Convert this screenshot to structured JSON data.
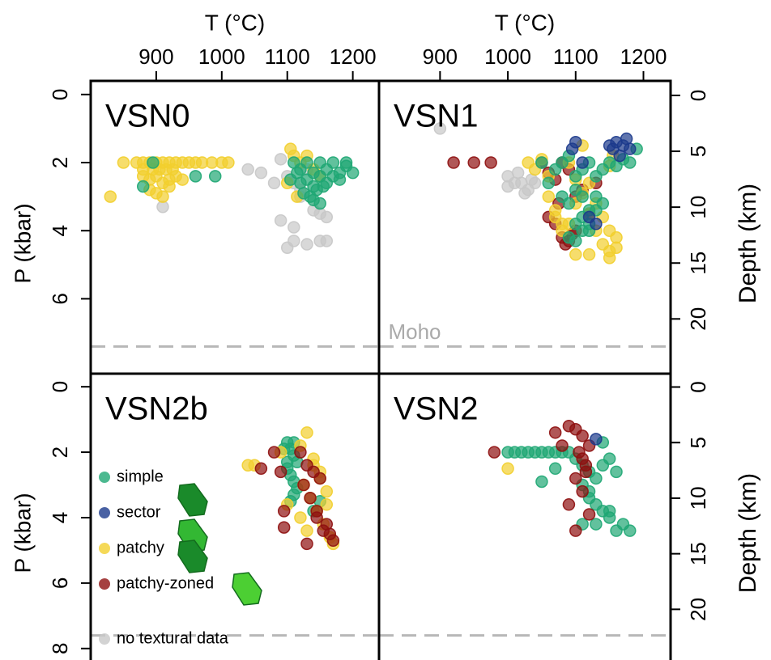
{
  "chart_data": [
    {
      "type": "scatter",
      "title": "VSN0",
      "xlabel": "T (°C)",
      "ylabel": "P (kbar)",
      "xlim": [
        800,
        1240
      ],
      "xticks": [
        900,
        1000,
        1100,
        1200
      ],
      "ylim": [
        8.2,
        -0.4
      ],
      "yticks": [
        0,
        2,
        4,
        6
      ],
      "moho": 7.4,
      "series": [
        {
          "name": "no textural data",
          "color": "#c8c8c8",
          "x": [
            910,
            1040,
            1060,
            1080,
            1090,
            1100,
            1110,
            1120,
            1130,
            1140,
            1150,
            1160,
            1100,
            1110,
            1130,
            1150,
            1160,
            1090,
            1110,
            1120
          ],
          "values": [
            3.3,
            2.2,
            2.3,
            2.6,
            1.9,
            2.4,
            2.6,
            3.0,
            2.2,
            3.4,
            3.5,
            3.6,
            4.5,
            4.3,
            4.4,
            4.3,
            4.3,
            3.7,
            3.9,
            2.8
          ]
        },
        {
          "name": "patchy",
          "color": "#f2cf2e",
          "x": [
            830,
            850,
            870,
            880,
            890,
            900,
            910,
            920,
            930,
            940,
            950,
            960,
            880,
            890,
            900,
            910,
            920,
            930,
            940,
            890,
            900,
            910,
            920,
            880,
            895,
            905,
            915,
            925,
            970,
            985,
            1000,
            1010,
            1105,
            1110,
            1120,
            1130,
            1140,
            1150,
            1100,
            1115
          ],
          "values": [
            3.0,
            2.0,
            2.0,
            2.0,
            2.0,
            2.0,
            2.0,
            2.0,
            2.0,
            2.0,
            2.0,
            2.0,
            2.4,
            2.5,
            2.4,
            2.6,
            2.5,
            2.4,
            2.5,
            2.8,
            2.9,
            3.0,
            2.7,
            2.2,
            2.2,
            2.2,
            2.2,
            2.2,
            2.0,
            2.0,
            2.0,
            2.0,
            1.6,
            1.8,
            2.0,
            1.8,
            2.2,
            2.4,
            2.6,
            3.0
          ]
        },
        {
          "name": "simple",
          "color": "#1fa774",
          "x": [
            880,
            895,
            960,
            990,
            1110,
            1120,
            1130,
            1140,
            1150,
            1160,
            1170,
            1180,
            1190,
            1200,
            1120,
            1130,
            1140,
            1150,
            1160,
            1170,
            1180,
            1125,
            1135,
            1145,
            1155,
            1140,
            1150,
            1105,
            1115,
            1190
          ],
          "values": [
            2.7,
            2.0,
            2.4,
            2.4,
            2.0,
            2.2,
            2.0,
            2.3,
            2.0,
            2.2,
            2.0,
            2.3,
            2.0,
            2.3,
            2.6,
            2.5,
            2.7,
            2.4,
            2.6,
            2.4,
            2.5,
            2.9,
            3.0,
            2.8,
            2.7,
            3.1,
            3.2,
            2.5,
            2.3,
            2.1
          ]
        }
      ]
    },
    {
      "type": "scatter",
      "title": "VSN1",
      "xlabel": "T (°C)",
      "y2label": "Depth (km)",
      "xlim": [
        810,
        1240
      ],
      "xticks": [
        900,
        1000,
        1100,
        1200
      ],
      "ylim": [
        8.2,
        -0.4
      ],
      "y2lim": [
        24.9,
        -1.3
      ],
      "y2ticks": [
        0,
        5,
        10,
        15,
        20
      ],
      "moho": 7.4,
      "moho_label": "Moho",
      "series": [
        {
          "name": "no textural data",
          "color": "#c8c8c8",
          "x": [
            900,
            1000,
            1010,
            1020,
            1030,
            1040,
            1015,
            1025,
            1000,
            1035
          ],
          "values": [
            1.0,
            2.4,
            2.6,
            2.6,
            2.8,
            2.6,
            2.3,
            2.9,
            2.7,
            2.5
          ]
        },
        {
          "name": "patchy-zoned",
          "color": "#8e1010",
          "x": [
            920,
            950,
            975,
            1050,
            1060,
            1070,
            1080,
            1090,
            1100,
            1110,
            1060,
            1070,
            1080,
            1090,
            1100,
            1075,
            1085,
            1095,
            1120,
            1130
          ],
          "values": [
            2.0,
            2.0,
            2.0,
            2.0,
            2.3,
            2.5,
            2.0,
            2.2,
            3.0,
            2.8,
            3.6,
            3.8,
            4.2,
            4.3,
            4.0,
            3.2,
            4.4,
            4.1,
            3.5,
            2.6
          ]
        },
        {
          "name": "patchy",
          "color": "#f2cf2e",
          "x": [
            1030,
            1040,
            1050,
            1060,
            1070,
            1080,
            1090,
            1100,
            1110,
            1120,
            1130,
            1140,
            1150,
            1160,
            1060,
            1070,
            1080,
            1090,
            1100,
            1110,
            1120,
            1130,
            1140,
            1150,
            1160,
            1100,
            1120,
            1150,
            1150,
            1155
          ],
          "values": [
            2.0,
            2.2,
            1.9,
            2.4,
            3.4,
            3.8,
            2.0,
            2.5,
            1.5,
            2.6,
            3.2,
            3.6,
            4.0,
            4.2,
            3.0,
            3.6,
            4.0,
            3.8,
            3.2,
            2.9,
            3.5,
            4.0,
            4.4,
            4.6,
            4.5,
            4.7,
            4.7,
            4.8,
            2.1,
            1.8
          ]
        },
        {
          "name": "simple",
          "color": "#1fa774",
          "x": [
            1050,
            1060,
            1070,
            1080,
            1090,
            1100,
            1110,
            1120,
            1130,
            1140,
            1150,
            1160,
            1170,
            1180,
            1190,
            1080,
            1090,
            1100,
            1110,
            1120,
            1130,
            1140,
            1100,
            1110,
            1120,
            1130,
            1090,
            1100,
            1110,
            1120
          ],
          "values": [
            2.0,
            2.6,
            2.2,
            2.0,
            1.8,
            2.4,
            2.2,
            2.0,
            2.4,
            2.2,
            2.0,
            2.1,
            1.9,
            2.0,
            1.6,
            3.0,
            3.2,
            2.8,
            3.0,
            3.4,
            3.0,
            3.2,
            3.8,
            3.6,
            4.0,
            3.4,
            4.2,
            4.3,
            4.0,
            3.8
          ]
        },
        {
          "name": "sector",
          "color": "#1c3a8c",
          "x": [
            1095,
            1100,
            1110,
            1150,
            1160,
            1170,
            1175,
            1180,
            1165,
            1155,
            1120,
            1130
          ],
          "values": [
            1.6,
            1.4,
            2.0,
            1.5,
            1.4,
            1.5,
            1.3,
            1.6,
            1.8,
            1.6,
            3.6,
            3.8
          ]
        }
      ]
    },
    {
      "type": "scatter",
      "title": "VSN2b",
      "ylabel": "P (kbar)",
      "legend": "bottom-left",
      "xlim": [
        800,
        1240
      ],
      "ylim": [
        8.45,
        -0.4
      ],
      "yticks": [
        0,
        2,
        4,
        6,
        8
      ],
      "moho": 7.6,
      "series": [
        {
          "name": "simple",
          "color": "#1fa774",
          "x": [
            1100,
            1105,
            1110,
            1115,
            1100,
            1105,
            1110,
            1115,
            1110,
            1105,
            1100,
            1095,
            1110,
            1140,
            1150
          ],
          "values": [
            1.7,
            1.9,
            2.1,
            2.3,
            2.5,
            2.7,
            2.9,
            3.1,
            3.3,
            3.5,
            2.3,
            1.9,
            1.7,
            3.8,
            3.5
          ]
        },
        {
          "name": "sector",
          "color": "#1c3a8c",
          "x": [],
          "values": []
        },
        {
          "name": "patchy",
          "color": "#f2cf2e",
          "x": [
            1040,
            1050,
            1090,
            1100,
            1120,
            1130,
            1140,
            1150,
            1160,
            1125,
            1135,
            1145,
            1155,
            1165,
            1120,
            1130,
            1140,
            1150,
            1160,
            1170
          ],
          "values": [
            2.4,
            2.4,
            2.0,
            3.6,
            1.8,
            1.4,
            2.4,
            2.8,
            3.2,
            3.0,
            3.4,
            3.8,
            4.2,
            4.6,
            4.0,
            4.4,
            2.2,
            2.6,
            3.6,
            4.8
          ]
        },
        {
          "name": "patchy-zoned",
          "color": "#8e1010",
          "x": [
            1060,
            1080,
            1090,
            1095,
            1120,
            1130,
            1140,
            1150,
            1160,
            1165,
            1170,
            1145,
            1155,
            1125,
            1135,
            1095,
            1130,
            1145
          ],
          "values": [
            2.5,
            2.0,
            2.6,
            3.8,
            2.0,
            2.4,
            2.6,
            2.8,
            4.2,
            4.5,
            4.7,
            4.0,
            4.4,
            3.0,
            3.4,
            4.3,
            4.8,
            3.8
          ]
        },
        {
          "name": "no textural data",
          "color": "#c8c8c8",
          "x": [],
          "values": []
        }
      ]
    },
    {
      "type": "scatter",
      "title": "VSN2",
      "y2label": "Depth (km)",
      "xlim": [
        810,
        1240
      ],
      "ylim": [
        8.45,
        -0.4
      ],
      "y2lim": [
        24.85,
        -1.2
      ],
      "y2ticks": [
        0,
        5,
        10,
        15,
        20
      ],
      "moho": 7.6,
      "series": [
        {
          "name": "simple",
          "color": "#1fa774",
          "x": [
            1000,
            1010,
            1020,
            1030,
            1040,
            1050,
            1060,
            1070,
            1080,
            1090,
            1100,
            1110,
            1120,
            1130,
            1140,
            1150,
            1160,
            1110,
            1120,
            1130,
            1140,
            1150,
            1110,
            1130,
            1150,
            1170,
            1180,
            1160,
            1120,
            1070,
            1050,
            1140
          ],
          "values": [
            2.0,
            2.0,
            2.0,
            2.0,
            2.0,
            2.0,
            2.0,
            2.0,
            2.0,
            2.0,
            2.2,
            2.4,
            2.6,
            2.8,
            2.4,
            2.2,
            2.6,
            3.0,
            3.4,
            3.6,
            3.8,
            4.0,
            4.2,
            4.2,
            3.8,
            4.2,
            4.4,
            4.4,
            3.2,
            2.5,
            2.9,
            1.7
          ]
        },
        {
          "name": "patchy",
          "color": "#f2cf2e",
          "x": [
            1000
          ],
          "values": [
            2.5
          ]
        },
        {
          "name": "patchy-zoned",
          "color": "#8e1010",
          "x": [
            980,
            1070,
            1080,
            1090,
            1100,
            1110,
            1120,
            1105,
            1115,
            1100,
            1110,
            1090,
            1120,
            1100,
            1110,
            1115
          ],
          "values": [
            2.0,
            1.4,
            1.8,
            1.2,
            1.3,
            1.5,
            1.8,
            2.0,
            2.4,
            2.8,
            3.2,
            3.6,
            3.9,
            4.4,
            2.2,
            2.6
          ]
        },
        {
          "name": "sector",
          "color": "#1c3a8c",
          "x": [
            1130
          ],
          "values": [
            1.6
          ]
        }
      ]
    }
  ]
}
